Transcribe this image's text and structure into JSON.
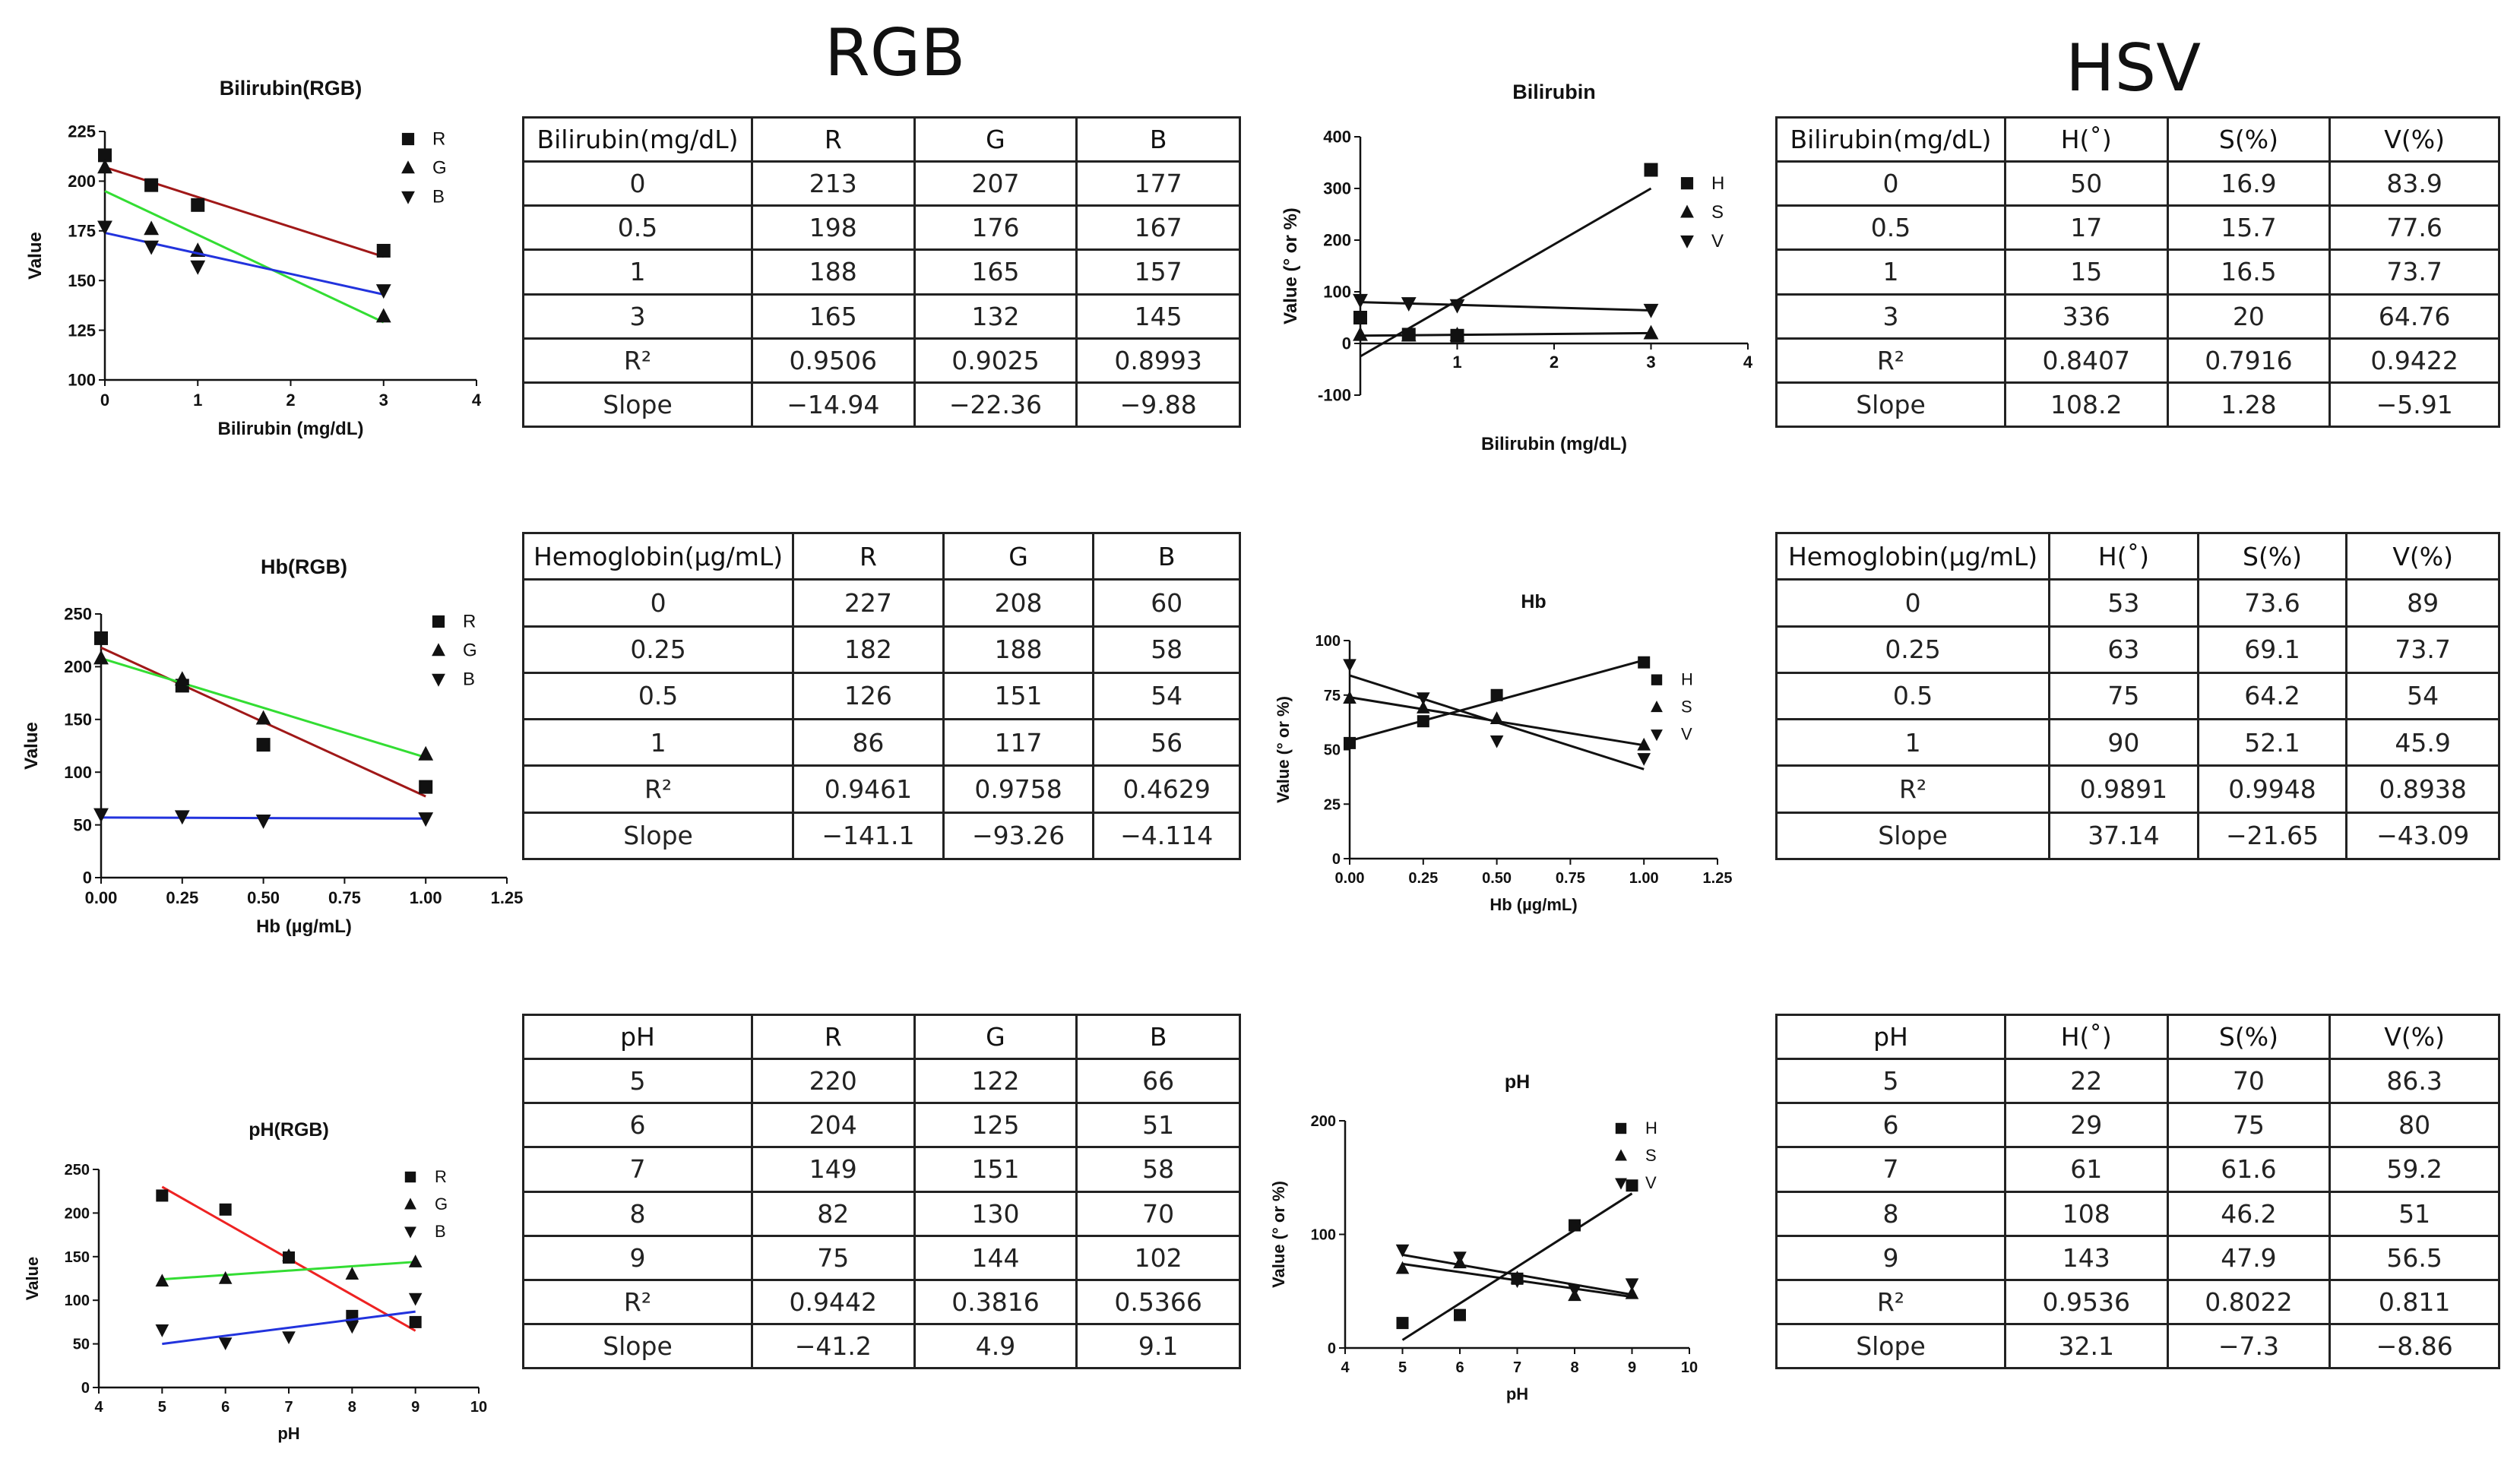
{
  "headings": {
    "rgb": "RGB",
    "hsv": "HSV"
  },
  "chart_data": [
    {
      "type": "scatter",
      "title": "Bilirubin(RGB)",
      "xlabel": "Bilirubin (mg/dL)",
      "ylabel": "Value",
      "xlim": [
        0,
        4
      ],
      "ylim": [
        100,
        225
      ],
      "xticks": [
        0,
        1,
        2,
        3,
        4
      ],
      "yticks": [
        100,
        125,
        150,
        175,
        200,
        225
      ],
      "xtick_labels": [
        "0",
        "1",
        "2",
        "3",
        "4"
      ],
      "ytick_labels": [
        "100",
        "125",
        "150",
        "175",
        "200",
        "225"
      ],
      "legend_position": "top-right",
      "series": [
        {
          "name": "R",
          "marker": "square",
          "line_color": "#a01818",
          "x": [
            0,
            0.5,
            1,
            3
          ],
          "y": [
            213,
            198,
            188,
            165
          ],
          "fit": [
            [
              0,
              207
            ],
            [
              3,
              162
            ]
          ]
        },
        {
          "name": "G",
          "marker": "triangle-up",
          "line_color": "#33dd33",
          "x": [
            0,
            0.5,
            1,
            3
          ],
          "y": [
            207,
            176,
            165,
            132
          ],
          "fit": [
            [
              0,
              195
            ],
            [
              3,
              129
            ]
          ]
        },
        {
          "name": "B",
          "marker": "triangle-down",
          "line_color": "#2233dd",
          "x": [
            0,
            0.5,
            1,
            3
          ],
          "y": [
            177,
            167,
            157,
            145
          ],
          "fit": [
            [
              0,
              174
            ],
            [
              3,
              143
            ]
          ]
        }
      ]
    },
    {
      "type": "scatter",
      "title": "Bilirubin",
      "xlabel": "Bilirubin (mg/dL)",
      "ylabel": "Value (° or %)",
      "xlim": [
        0,
        4
      ],
      "ylim": [
        -100,
        400
      ],
      "xticks": [
        1,
        2,
        3,
        4
      ],
      "yticks": [
        -100,
        0,
        100,
        200,
        300,
        400
      ],
      "xtick_labels": [
        "1",
        "2",
        "3",
        "4"
      ],
      "ytick_labels": [
        "-100",
        "0",
        "100",
        "200",
        "300",
        "400"
      ],
      "legend_position": "right",
      "series": [
        {
          "name": "H",
          "marker": "square",
          "line_color": "#111111",
          "x": [
            0,
            0.5,
            1,
            3
          ],
          "y": [
            50,
            17,
            15,
            336
          ],
          "fit": [
            [
              0,
              -25
            ],
            [
              3,
              300
            ]
          ]
        },
        {
          "name": "S",
          "marker": "triangle-up",
          "line_color": "#111111",
          "x": [
            0,
            0.5,
            1,
            3
          ],
          "y": [
            16.9,
            15.7,
            16.5,
            20
          ],
          "fit": [
            [
              0,
              15
            ],
            [
              3,
              20
            ]
          ]
        },
        {
          "name": "V",
          "marker": "triangle-down",
          "line_color": "#111111",
          "x": [
            0,
            0.5,
            1,
            3
          ],
          "y": [
            83.9,
            77.6,
            73.7,
            64.76
          ],
          "fit": [
            [
              0,
              80
            ],
            [
              3,
              64
            ]
          ]
        }
      ]
    },
    {
      "type": "scatter",
      "title": "Hb(RGB)",
      "xlabel": "Hb (µg/mL)",
      "ylabel": "Value",
      "xlim": [
        0,
        1.25
      ],
      "ylim": [
        0,
        250
      ],
      "xticks": [
        0,
        0.25,
        0.5,
        0.75,
        1,
        1.25
      ],
      "yticks": [
        0,
        50,
        100,
        150,
        200,
        250
      ],
      "xtick_labels": [
        "0.00",
        "0.25",
        "0.50",
        "0.75",
        "1.00",
        "1.25"
      ],
      "ytick_labels": [
        "0",
        "50",
        "100",
        "150",
        "200",
        "250"
      ],
      "legend_position": "top-right",
      "series": [
        {
          "name": "R",
          "marker": "square",
          "line_color": "#a01818",
          "x": [
            0,
            0.25,
            0.5,
            1
          ],
          "y": [
            227,
            182,
            126,
            86
          ],
          "fit": [
            [
              0,
              218
            ],
            [
              1,
              77
            ]
          ]
        },
        {
          "name": "G",
          "marker": "triangle-up",
          "line_color": "#33dd33",
          "x": [
            0,
            0.25,
            0.5,
            1
          ],
          "y": [
            208,
            188,
            151,
            117
          ],
          "fit": [
            [
              0,
              208
            ],
            [
              1,
              114
            ]
          ]
        },
        {
          "name": "B",
          "marker": "triangle-down",
          "line_color": "#2233dd",
          "x": [
            0,
            0.25,
            0.5,
            1
          ],
          "y": [
            60,
            58,
            54,
            56
          ],
          "fit": [
            [
              0,
              57
            ],
            [
              1,
              56
            ]
          ]
        }
      ]
    },
    {
      "type": "scatter",
      "title": "Hb",
      "xlabel": "Hb (µg/mL)",
      "ylabel": "Value (° or %)",
      "xlim": [
        0,
        1.25
      ],
      "ylim": [
        0,
        100
      ],
      "xticks": [
        0,
        0.25,
        0.5,
        0.75,
        1,
        1.25
      ],
      "yticks": [
        0,
        25,
        50,
        75,
        100
      ],
      "xtick_labels": [
        "0.00",
        "0.25",
        "0.50",
        "0.75",
        "1.00",
        "1.25"
      ],
      "ytick_labels": [
        "0",
        "25",
        "50",
        "75",
        "100"
      ],
      "legend_position": "right",
      "series": [
        {
          "name": "H",
          "marker": "square",
          "line_color": "#111111",
          "x": [
            0,
            0.25,
            0.5,
            1
          ],
          "y": [
            53,
            63,
            75,
            90
          ],
          "fit": [
            [
              0,
              54
            ],
            [
              1,
              91
            ]
          ]
        },
        {
          "name": "S",
          "marker": "triangle-up",
          "line_color": "#111111",
          "x": [
            0,
            0.25,
            0.5,
            1
          ],
          "y": [
            73.6,
            69.1,
            64.2,
            52.1
          ],
          "fit": [
            [
              0,
              74
            ],
            [
              1,
              52
            ]
          ]
        },
        {
          "name": "V",
          "marker": "triangle-down",
          "line_color": "#111111",
          "x": [
            0,
            0.25,
            0.5,
            1
          ],
          "y": [
            89,
            73.7,
            54,
            45.9
          ],
          "fit": [
            [
              0,
              84
            ],
            [
              1,
              41
            ]
          ]
        }
      ]
    },
    {
      "type": "scatter",
      "title": "pH(RGB)",
      "xlabel": "pH",
      "ylabel": "Value",
      "xlim": [
        4,
        10
      ],
      "ylim": [
        0,
        250
      ],
      "xticks": [
        4,
        5,
        6,
        7,
        8,
        9,
        10
      ],
      "yticks": [
        0,
        50,
        100,
        150,
        200,
        250
      ],
      "xtick_labels": [
        "4",
        "5",
        "6",
        "7",
        "8",
        "9",
        "10"
      ],
      "ytick_labels": [
        "0",
        "50",
        "100",
        "150",
        "200",
        "250"
      ],
      "legend_position": "top-right",
      "series": [
        {
          "name": "R",
          "marker": "square",
          "line_color": "#ee2222",
          "x": [
            5,
            6,
            7,
            8,
            9
          ],
          "y": [
            220,
            204,
            149,
            82,
            75
          ],
          "fit": [
            [
              5,
              230
            ],
            [
              9,
              65
            ]
          ]
        },
        {
          "name": "G",
          "marker": "triangle-up",
          "line_color": "#33dd33",
          "x": [
            5,
            6,
            7,
            8,
            9
          ],
          "y": [
            122,
            125,
            151,
            130,
            144
          ],
          "fit": [
            [
              5,
              124
            ],
            [
              9,
              144
            ]
          ]
        },
        {
          "name": "B",
          "marker": "triangle-down",
          "line_color": "#2233dd",
          "x": [
            5,
            6,
            7,
            8,
            9
          ],
          "y": [
            66,
            51,
            58,
            70,
            102
          ],
          "fit": [
            [
              5,
              50
            ],
            [
              9,
              87
            ]
          ]
        }
      ]
    },
    {
      "type": "scatter",
      "title": "pH",
      "xlabel": "pH",
      "ylabel": "Value (° or %)",
      "xlim": [
        4,
        10
      ],
      "ylim": [
        0,
        200
      ],
      "xticks": [
        4,
        5,
        6,
        7,
        8,
        9,
        10
      ],
      "yticks": [
        0,
        100,
        200
      ],
      "xtick_labels": [
        "4",
        "5",
        "6",
        "7",
        "8",
        "9",
        "10"
      ],
      "ytick_labels": [
        "0",
        "100",
        "200"
      ],
      "legend_position": "top-right",
      "series": [
        {
          "name": "H",
          "marker": "square",
          "line_color": "#111111",
          "x": [
            5,
            6,
            7,
            8,
            9
          ],
          "y": [
            22,
            29,
            61,
            108,
            143
          ],
          "fit": [
            [
              5,
              7
            ],
            [
              9,
              136
            ]
          ]
        },
        {
          "name": "S",
          "marker": "triangle-up",
          "line_color": "#111111",
          "x": [
            5,
            6,
            7,
            8,
            9
          ],
          "y": [
            70,
            75,
            61.6,
            46.2,
            47.9
          ],
          "fit": [
            [
              5,
              74
            ],
            [
              9,
              45
            ]
          ]
        },
        {
          "name": "V",
          "marker": "triangle-down",
          "line_color": "#111111",
          "x": [
            5,
            6,
            7,
            8,
            9
          ],
          "y": [
            86.3,
            80,
            59.2,
            51,
            56.5
          ],
          "fit": [
            [
              5,
              82
            ],
            [
              9,
              47
            ]
          ]
        }
      ]
    }
  ],
  "tables": [
    {
      "header": [
        "Bilirubin(mg/dL)",
        "R",
        "G",
        "B"
      ],
      "rows": [
        [
          "0",
          "213",
          "207",
          "177"
        ],
        [
          "0.5",
          "198",
          "176",
          "167"
        ],
        [
          "1",
          "188",
          "165",
          "157"
        ],
        [
          "3",
          "165",
          "132",
          "145"
        ],
        [
          "R²",
          "0.9506",
          "0.9025",
          "0.8993"
        ],
        [
          "Slope",
          "−14.94",
          "−22.36",
          "−9.88"
        ]
      ]
    },
    {
      "header": [
        "Bilirubin(mg/dL)",
        "H(˚)",
        "S(%)",
        "V(%)"
      ],
      "rows": [
        [
          "0",
          "50",
          "16.9",
          "83.9"
        ],
        [
          "0.5",
          "17",
          "15.7",
          "77.6"
        ],
        [
          "1",
          "15",
          "16.5",
          "73.7"
        ],
        [
          "3",
          "336",
          "20",
          "64.76"
        ],
        [
          "R²",
          "0.8407",
          "0.7916",
          "0.9422"
        ],
        [
          "Slope",
          "108.2",
          "1.28",
          "−5.91"
        ]
      ]
    },
    {
      "header": [
        "Hemoglobin(µg/mL)",
        "R",
        "G",
        "B"
      ],
      "rows": [
        [
          "0",
          "227",
          "208",
          "60"
        ],
        [
          "0.25",
          "182",
          "188",
          "58"
        ],
        [
          "0.5",
          "126",
          "151",
          "54"
        ],
        [
          "1",
          "86",
          "117",
          "56"
        ],
        [
          "R²",
          "0.9461",
          "0.9758",
          "0.4629"
        ],
        [
          "Slope",
          "−141.1",
          "−93.26",
          "−4.114"
        ]
      ]
    },
    {
      "header": [
        "Hemoglobin(µg/mL)",
        "H(˚)",
        "S(%)",
        "V(%)"
      ],
      "rows": [
        [
          "0",
          "53",
          "73.6",
          "89"
        ],
        [
          "0.25",
          "63",
          "69.1",
          "73.7"
        ],
        [
          "0.5",
          "75",
          "64.2",
          "54"
        ],
        [
          "1",
          "90",
          "52.1",
          "45.9"
        ],
        [
          "R²",
          "0.9891",
          "0.9948",
          "0.8938"
        ],
        [
          "Slope",
          "37.14",
          "−21.65",
          "−43.09"
        ]
      ]
    },
    {
      "header": [
        "pH",
        "R",
        "G",
        "B"
      ],
      "rows": [
        [
          "5",
          "220",
          "122",
          "66"
        ],
        [
          "6",
          "204",
          "125",
          "51"
        ],
        [
          "7",
          "149",
          "151",
          "58"
        ],
        [
          "8",
          "82",
          "130",
          "70"
        ],
        [
          "9",
          "75",
          "144",
          "102"
        ],
        [
          "R²",
          "0.9442",
          "0.3816",
          "0.5366"
        ],
        [
          "Slope",
          "−41.2",
          "4.9",
          "9.1"
        ]
      ]
    },
    {
      "header": [
        "pH",
        "H(˚)",
        "S(%)",
        "V(%)"
      ],
      "rows": [
        [
          "5",
          "22",
          "70",
          "86.3"
        ],
        [
          "6",
          "29",
          "75",
          "80"
        ],
        [
          "7",
          "61",
          "61.6",
          "59.2"
        ],
        [
          "8",
          "108",
          "46.2",
          "51"
        ],
        [
          "9",
          "143",
          "47.9",
          "56.5"
        ],
        [
          "R²",
          "0.9536",
          "0.8022",
          "0.811"
        ],
        [
          "Slope",
          "32.1",
          "−7.3",
          "−8.86"
        ]
      ]
    }
  ]
}
